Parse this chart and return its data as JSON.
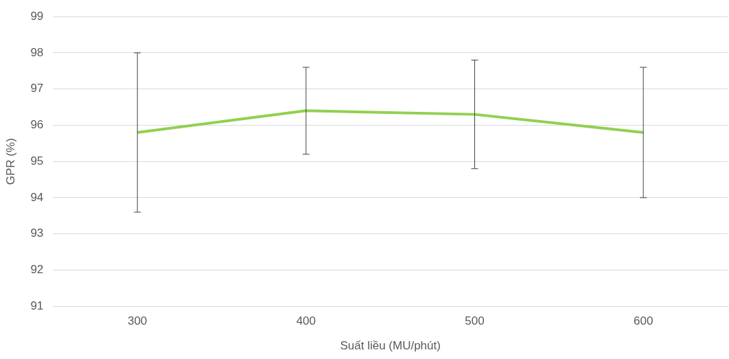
{
  "chart_data": {
    "type": "line",
    "xlabel": "Suất liều (MU/phút)",
    "ylabel": "GPR (%)",
    "categories": [
      "300",
      "400",
      "500",
      "600"
    ],
    "series": [
      {
        "color": "#92d050",
        "values": [
          95.8,
          96.4,
          96.3,
          95.8
        ],
        "errors": [
          2.2,
          1.2,
          1.5,
          1.8
        ]
      }
    ],
    "ylim": [
      91,
      99
    ],
    "yticks": [
      91,
      92,
      93,
      94,
      95,
      96,
      97,
      98,
      99
    ],
    "grid": "y",
    "legend": false,
    "marker": "none"
  }
}
